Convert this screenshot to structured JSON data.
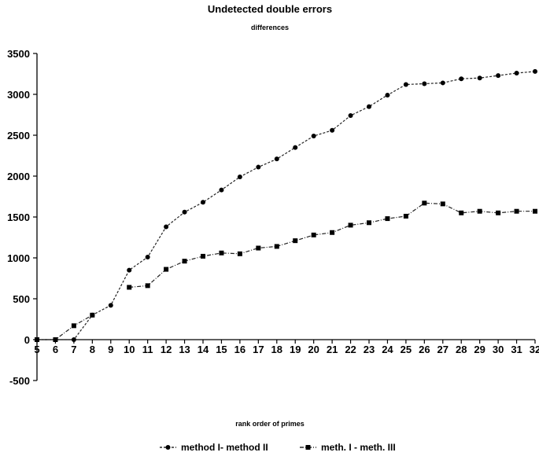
{
  "chart_data": {
    "type": "line",
    "title": "Undetected double errors",
    "subtitle": "differences",
    "xlabel": "rank order of primes",
    "ylabel": "",
    "categories": [
      "5",
      "6",
      "7",
      "8",
      "9",
      "10",
      "11",
      "12",
      "13",
      "14",
      "15",
      "16",
      "17",
      "18",
      "19",
      "20",
      "21",
      "22",
      "23",
      "24",
      "25",
      "26",
      "27",
      "28",
      "29",
      "30",
      "31",
      "32"
    ],
    "ylim": [
      -500,
      3500
    ],
    "yticks": [
      3500,
      3000,
      2500,
      2000,
      1500,
      1000,
      500,
      0,
      -500
    ],
    "grid": false,
    "legend_position": "bottom",
    "series": [
      {
        "name": "method I- method II",
        "marker": "circle",
        "values": [
          0,
          0,
          0,
          300,
          420,
          850,
          1010,
          1380,
          1560,
          1680,
          1830,
          1990,
          2110,
          2210,
          2350,
          2490,
          2560,
          2740,
          2850,
          2990,
          3120,
          3130,
          3140,
          3190,
          3200,
          3230,
          3260,
          3280
        ]
      },
      {
        "name": "meth. I - meth. III",
        "marker": "square",
        "values": [
          0,
          0,
          170,
          300,
          null,
          640,
          660,
          860,
          960,
          1020,
          1060,
          1050,
          1120,
          1140,
          1210,
          1280,
          1310,
          1400,
          1430,
          1480,
          1510,
          1670,
          1660,
          1550,
          1570,
          1550,
          1570,
          1570
        ]
      }
    ]
  }
}
